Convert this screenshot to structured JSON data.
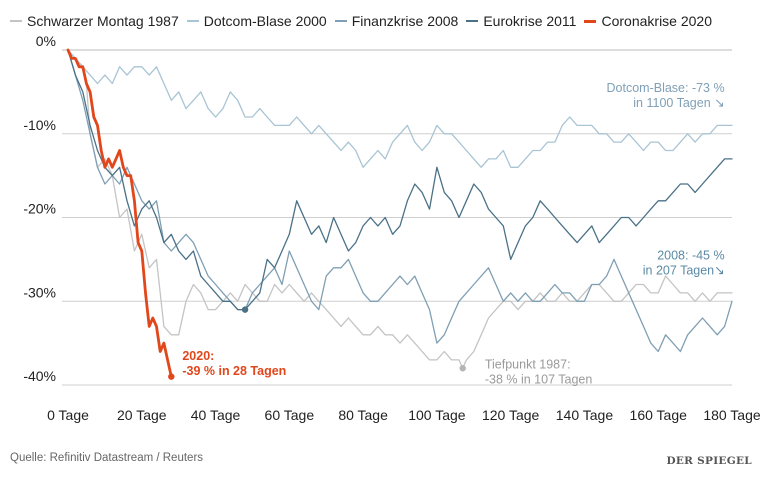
{
  "chart_data": {
    "type": "line",
    "xlabel": "",
    "ylabel": "",
    "xlim": [
      0,
      180
    ],
    "ylim": [
      -40,
      0
    ],
    "x_ticks": [
      0,
      20,
      40,
      60,
      80,
      100,
      120,
      140,
      160,
      180
    ],
    "x_tick_labels": [
      "0 Tage",
      "20 Tage",
      "40 Tage",
      "60 Tage",
      "80 Tage",
      "100 Tage",
      "120 Tage",
      "140 Tage",
      "160 Tage",
      "180 Tage"
    ],
    "y_ticks": [
      0,
      -10,
      -20,
      -30,
      -40
    ],
    "y_tick_labels": [
      "0%",
      "-10%",
      "-20%",
      "-30%",
      "-40%"
    ],
    "grid": true,
    "legend_position": "top",
    "series": [
      {
        "name": "Schwarzer Montag 1987",
        "color": "#c4c4c4",
        "x": [
          0,
          2,
          4,
          5,
          6,
          8,
          10,
          12,
          14,
          16,
          18,
          20,
          22,
          24,
          26,
          28,
          30,
          32,
          34,
          36,
          38,
          40,
          42,
          44,
          46,
          48,
          50,
          52,
          54,
          56,
          58,
          60,
          62,
          64,
          66,
          68,
          70,
          72,
          74,
          76,
          78,
          80,
          82,
          84,
          86,
          88,
          90,
          92,
          94,
          96,
          98,
          100,
          102,
          104,
          106,
          107,
          108,
          110,
          112,
          114,
          116,
          118,
          120,
          122,
          124,
          126,
          128,
          130,
          132,
          134,
          136,
          138,
          140,
          142,
          144,
          146,
          148,
          150,
          152,
          154,
          156,
          158,
          160,
          162,
          164,
          166,
          168,
          170,
          172,
          174,
          176,
          178,
          180
        ],
        "values": [
          0,
          -1,
          -2,
          -4,
          -10,
          -14,
          -13,
          -15,
          -20,
          -19,
          -24,
          -22,
          -26,
          -25,
          -33,
          -34,
          -34,
          -30,
          -28,
          -29,
          -31,
          -31,
          -30,
          -29,
          -30,
          -28,
          -29,
          -30,
          -30,
          -28,
          -29,
          -28,
          -29,
          -30,
          -29,
          -30,
          -31,
          -32,
          -33,
          -32,
          -33,
          -34,
          -34,
          -33,
          -34,
          -34,
          -35,
          -34,
          -35,
          -36,
          -37,
          -37,
          -36,
          -37,
          -37,
          -38,
          -37,
          -36,
          -34,
          -32,
          -31,
          -30,
          -30,
          -31,
          -30,
          -30,
          -29,
          -30,
          -30,
          -29,
          -30,
          -30,
          -29,
          -28,
          -28,
          -29,
          -30,
          -30,
          -29,
          -28,
          -28,
          -29,
          -29,
          -27,
          -28,
          -29,
          -29,
          -30,
          -29,
          -30,
          -29,
          -29,
          -29
        ]
      },
      {
        "name": "Dotcom-Blase 2000",
        "color": "#a9c4d4",
        "x": [
          0,
          2,
          4,
          6,
          8,
          10,
          12,
          14,
          16,
          18,
          20,
          22,
          24,
          26,
          28,
          30,
          32,
          34,
          36,
          38,
          40,
          42,
          44,
          46,
          48,
          50,
          52,
          54,
          56,
          58,
          60,
          62,
          64,
          66,
          68,
          70,
          72,
          74,
          76,
          78,
          80,
          82,
          84,
          86,
          88,
          90,
          92,
          94,
          96,
          98,
          100,
          102,
          104,
          106,
          108,
          110,
          112,
          114,
          116,
          118,
          120,
          122,
          124,
          126,
          128,
          130,
          132,
          134,
          136,
          138,
          140,
          142,
          144,
          146,
          148,
          150,
          152,
          154,
          156,
          158,
          160,
          162,
          164,
          166,
          168,
          170,
          172,
          174,
          176,
          178,
          180
        ],
        "values": [
          0,
          -1,
          -2,
          -3,
          -4,
          -3,
          -4,
          -2,
          -3,
          -2,
          -2,
          -3,
          -2,
          -4,
          -6,
          -5,
          -7,
          -6,
          -5,
          -7,
          -8,
          -7,
          -5,
          -6,
          -8,
          -8,
          -7,
          -8,
          -9,
          -9,
          -9,
          -8,
          -9,
          -10,
          -9,
          -10,
          -11,
          -12,
          -11,
          -12,
          -14,
          -13,
          -12,
          -13,
          -11,
          -10,
          -9,
          -11,
          -12,
          -11,
          -9,
          -10,
          -10,
          -11,
          -12,
          -13,
          -14,
          -13,
          -13,
          -12,
          -14,
          -14,
          -13,
          -12,
          -12,
          -11,
          -11,
          -9,
          -8,
          -9,
          -9,
          -9,
          -10,
          -10,
          -11,
          -11,
          -10,
          -11,
          -12,
          -11,
          -11,
          -12,
          -12,
          -11,
          -10,
          -11,
          -10,
          -10,
          -9,
          -9,
          -9
        ]
      },
      {
        "name": "Finanzkrise 2008",
        "color": "#7f9fb4",
        "x": [
          0,
          2,
          4,
          6,
          8,
          10,
          12,
          14,
          16,
          18,
          20,
          22,
          24,
          26,
          28,
          30,
          32,
          34,
          36,
          38,
          40,
          42,
          44,
          46,
          48,
          50,
          52,
          54,
          56,
          58,
          60,
          62,
          64,
          66,
          68,
          70,
          72,
          74,
          76,
          78,
          80,
          82,
          84,
          86,
          88,
          90,
          92,
          94,
          96,
          98,
          100,
          102,
          104,
          106,
          108,
          110,
          112,
          114,
          116,
          118,
          120,
          122,
          124,
          126,
          128,
          130,
          132,
          134,
          136,
          138,
          140,
          142,
          144,
          146,
          148,
          150,
          152,
          154,
          156,
          158,
          160,
          162,
          164,
          166,
          168,
          170,
          172,
          174,
          176,
          178,
          180
        ],
        "values": [
          0,
          -3,
          -6,
          -10,
          -14,
          -16,
          -15,
          -16,
          -14,
          -16,
          -18,
          -19,
          -18,
          -23,
          -24,
          -23,
          -22,
          -23,
          -25,
          -27,
          -28,
          -29,
          -30,
          -31,
          -31,
          -29,
          -28,
          -27,
          -26,
          -28,
          -24,
          -26,
          -28,
          -30,
          -31,
          -27,
          -26,
          -26,
          -25,
          -27,
          -29,
          -30,
          -30,
          -29,
          -28,
          -27,
          -28,
          -27,
          -29,
          -31,
          -35,
          -34,
          -32,
          -30,
          -29,
          -28,
          -27,
          -26,
          -28,
          -30,
          -29,
          -30,
          -29,
          -30,
          -30,
          -29,
          -28,
          -29,
          -29,
          -30,
          -30,
          -28,
          -28,
          -27,
          -25,
          -27,
          -29,
          -31,
          -33,
          -35,
          -36,
          -34,
          -35,
          -36,
          -34,
          -33,
          -32,
          -33,
          -34,
          -33,
          -30
        ]
      },
      {
        "name": "Eurokrise 2011",
        "color": "#4a7187",
        "x": [
          0,
          2,
          4,
          6,
          8,
          10,
          12,
          14,
          16,
          18,
          20,
          22,
          24,
          26,
          28,
          30,
          32,
          34,
          36,
          38,
          40,
          42,
          44,
          46,
          48,
          50,
          52,
          54,
          56,
          58,
          60,
          62,
          64,
          66,
          68,
          70,
          72,
          74,
          76,
          78,
          80,
          82,
          84,
          86,
          88,
          90,
          92,
          94,
          96,
          98,
          100,
          102,
          104,
          106,
          108,
          110,
          112,
          114,
          116,
          118,
          120,
          122,
          124,
          126,
          128,
          130,
          132,
          134,
          136,
          138,
          140,
          142,
          144,
          146,
          148,
          150,
          152,
          154,
          156,
          158,
          160,
          162,
          164,
          166,
          168,
          170,
          172,
          174,
          176,
          178,
          180
        ],
        "values": [
          0,
          -3,
          -5,
          -9,
          -12,
          -14,
          -15,
          -14,
          -18,
          -21,
          -19,
          -18,
          -20,
          -23,
          -22,
          -24,
          -25,
          -24,
          -27,
          -28,
          -29,
          -30,
          -30,
          -31,
          -31,
          -30,
          -29,
          -25,
          -26,
          -24,
          -22,
          -18,
          -20,
          -22,
          -21,
          -23,
          -20,
          -22,
          -24,
          -23,
          -21,
          -20,
          -21,
          -20,
          -22,
          -21,
          -18,
          -16,
          -17,
          -19,
          -14,
          -17,
          -18,
          -20,
          -18,
          -16,
          -17,
          -19,
          -20,
          -21,
          -25,
          -23,
          -21,
          -20,
          -18,
          -19,
          -20,
          -21,
          -22,
          -23,
          -22,
          -21,
          -23,
          -22,
          -21,
          -20,
          -20,
          -21,
          -20,
          -19,
          -18,
          -18,
          -17,
          -16,
          -16,
          -17,
          -16,
          -15,
          -14,
          -13,
          -13
        ]
      },
      {
        "name": "Coronakrise 2020",
        "color": "#e2461b",
        "x": [
          0,
          1,
          2,
          3,
          4,
          5,
          6,
          7,
          8,
          9,
          10,
          11,
          12,
          13,
          14,
          15,
          16,
          17,
          18,
          19,
          20,
          21,
          22,
          23,
          24,
          25,
          26,
          27,
          28
        ],
        "values": [
          0,
          -1,
          -1,
          -2,
          -2,
          -4,
          -5,
          -8,
          -9,
          -12,
          -14,
          -13,
          -14,
          -13,
          -12,
          -14,
          -15,
          -15,
          -18,
          -23,
          -24,
          -29,
          -33,
          -32,
          -33,
          -36,
          -35,
          -37,
          -39
        ]
      }
    ],
    "annotations": [
      {
        "text_line1": "Dotcom-Blase: -73 %",
        "text_line2": "in 1100 Tagen ↘",
        "color": "#7fa0b6",
        "x": 178,
        "y": -5,
        "anchor": "end"
      },
      {
        "text_line1": "2008: -45 %",
        "text_line2": "in 207 Tagen↘",
        "color": "#5a8aa6",
        "x": 178,
        "y": -25,
        "anchor": "end"
      },
      {
        "text_line1": "2020:",
        "text_line2": "-39 % in 28 Tagen",
        "color": "#e2461b",
        "x": 31,
        "y": -37,
        "anchor": "start",
        "bold": true
      },
      {
        "text_line1": "Tiefpunkt 1987:",
        "text_line2": "-38 % in 107 Tagen",
        "color": "#9a9a9a",
        "x": 113,
        "y": -38,
        "anchor": "start"
      }
    ],
    "markers": [
      {
        "series": "Coronakrise 2020",
        "x": 28,
        "y": -39,
        "color": "#e2461b"
      },
      {
        "series": "Eurokrise 2011",
        "x": 48,
        "y": -31,
        "color": "#4a7187"
      },
      {
        "series": "Schwarzer Montag 1987",
        "x": 107,
        "y": -38,
        "color": "#b5b5b5"
      }
    ]
  },
  "footer": {
    "source": "Quelle: Refinitiv Datastream / Reuters",
    "brand": "DER SPIEGEL"
  }
}
